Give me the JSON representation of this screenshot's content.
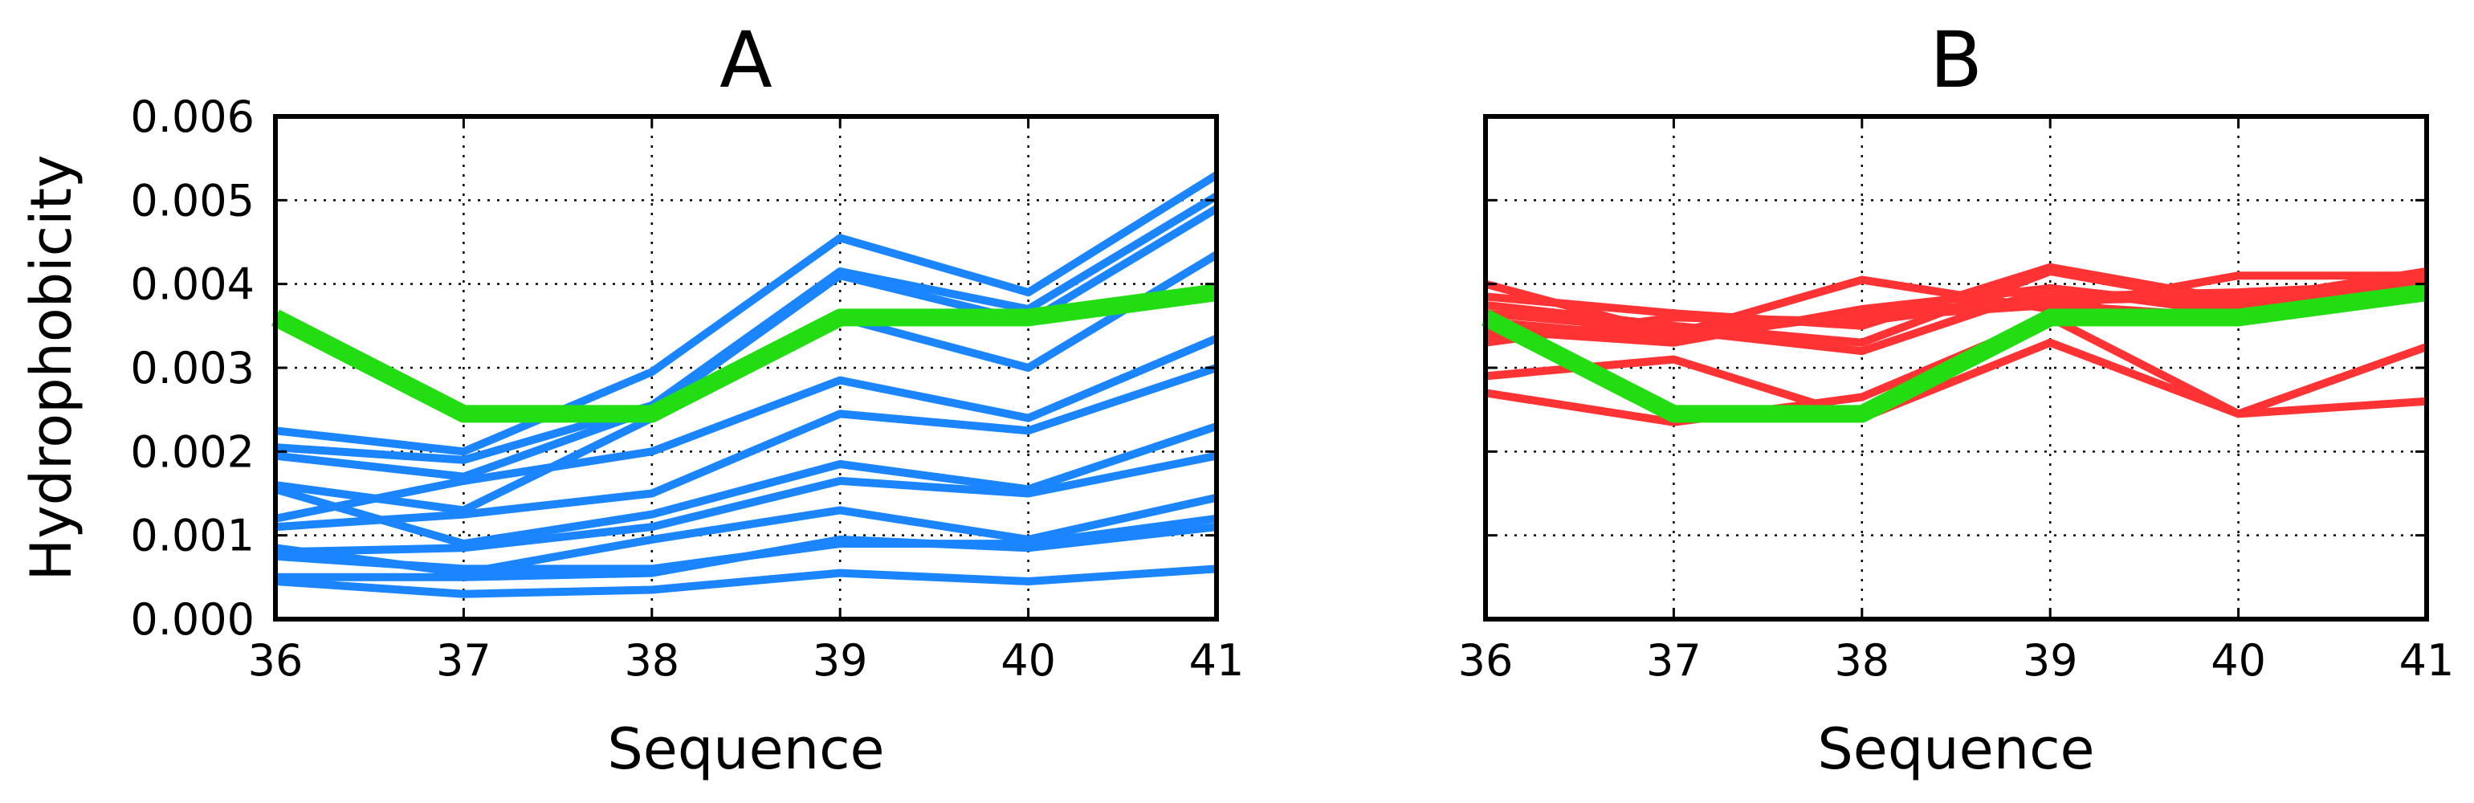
{
  "chart_data": [
    {
      "type": "line",
      "title": "A",
      "xlabel": "Sequence",
      "ylabel": "Hydrophobicity",
      "x": [
        36,
        37,
        38,
        39,
        40,
        41
      ],
      "xlim": [
        36,
        41
      ],
      "ylim": [
        0,
        0.006
      ],
      "xticks": [
        "36",
        "37",
        "38",
        "39",
        "40",
        "41"
      ],
      "yticks": [
        "0.000",
        "0.001",
        "0.002",
        "0.003",
        "0.004",
        "0.005",
        "0.006"
      ],
      "grid": true,
      "colors": {
        "series": "#1a85ff",
        "highlight": "#22dd11"
      },
      "series": [
        {
          "values": [
            0.00225,
            0.002,
            0.00295,
            0.00455,
            0.0039,
            0.0053
          ]
        },
        {
          "values": [
            0.00205,
            0.0019,
            0.00255,
            0.00415,
            0.0037,
            0.00505
          ]
        },
        {
          "values": [
            0.00195,
            0.0017,
            0.0025,
            0.0041,
            0.00355,
            0.0049
          ]
        },
        {
          "values": [
            0.0016,
            0.0013,
            0.0024,
            0.0036,
            0.003,
            0.00435
          ]
        },
        {
          "values": [
            0.0012,
            0.00165,
            0.002,
            0.00285,
            0.0024,
            0.00335
          ]
        },
        {
          "values": [
            0.0011,
            0.00125,
            0.0015,
            0.00245,
            0.00225,
            0.003
          ]
        },
        {
          "values": [
            0.00155,
            0.0009,
            0.00125,
            0.00185,
            0.00155,
            0.0023
          ]
        },
        {
          "values": [
            0.0008,
            0.00085,
            0.0011,
            0.00165,
            0.0015,
            0.00195
          ]
        },
        {
          "values": [
            0.00085,
            0.00055,
            0.00095,
            0.0013,
            0.00095,
            0.00145
          ]
        },
        {
          "values": [
            0.00075,
            0.0006,
            0.0006,
            0.0009,
            0.0009,
            0.0012
          ]
        },
        {
          "values": [
            0.0005,
            0.0005,
            0.00055,
            0.00095,
            0.00085,
            0.0011
          ]
        },
        {
          "values": [
            0.00045,
            0.0003,
            0.00035,
            0.00055,
            0.00045,
            0.0006
          ]
        }
      ],
      "highlight": {
        "values": [
          0.0036,
          0.00245,
          0.00245,
          0.0036,
          0.0036,
          0.0039
        ]
      }
    },
    {
      "type": "line",
      "title": "B",
      "xlabel": "Sequence",
      "ylabel": "",
      "x": [
        36,
        37,
        38,
        39,
        40,
        41
      ],
      "xlim": [
        36,
        41
      ],
      "ylim": [
        0,
        0.006
      ],
      "xticks": [
        "36",
        "37",
        "38",
        "39",
        "40",
        "41"
      ],
      "yticks": [],
      "grid": true,
      "colors": {
        "series": "#ff3333",
        "highlight": "#22dd11"
      },
      "series": [
        {
          "values": [
            0.004,
            0.0034,
            0.00405,
            0.0037,
            0.0041,
            0.0041
          ]
        },
        {
          "values": [
            0.00385,
            0.00365,
            0.0035,
            0.0042,
            0.0038,
            0.00415
          ]
        },
        {
          "values": [
            0.00375,
            0.0035,
            0.0033,
            0.00415,
            0.00375,
            0.00405
          ]
        },
        {
          "values": [
            0.00365,
            0.00345,
            0.0032,
            0.00395,
            0.00365,
            0.004
          ]
        },
        {
          "values": [
            0.00355,
            0.00335,
            0.00365,
            0.0038,
            0.00385,
            0.00395
          ]
        },
        {
          "values": [
            0.00345,
            0.0033,
            0.0037,
            0.00395,
            0.0037,
            0.0039
          ]
        },
        {
          "values": [
            0.0034,
            0.00345,
            0.0036,
            0.00375,
            0.0036,
            0.00385
          ]
        },
        {
          "values": [
            0.0033,
            0.0036,
            0.00355,
            0.00385,
            0.0039,
            0.004
          ]
        },
        {
          "values": [
            0.0029,
            0.0031,
            0.0024,
            0.0033,
            0.00245,
            0.00325
          ]
        },
        {
          "values": [
            0.0027,
            0.00235,
            0.00265,
            0.0036,
            0.00245,
            0.0026
          ]
        }
      ],
      "highlight": {
        "values": [
          0.0036,
          0.00245,
          0.00245,
          0.0036,
          0.0036,
          0.0039
        ]
      }
    }
  ]
}
